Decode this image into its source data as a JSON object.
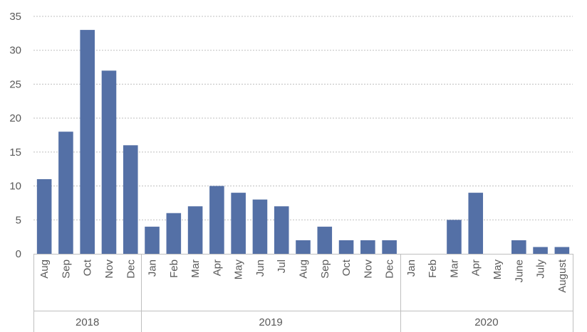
{
  "chart_data": {
    "type": "bar",
    "title": "",
    "xlabel": "",
    "ylabel": "",
    "ylim": [
      0,
      35
    ],
    "yticks": [
      0,
      5,
      10,
      15,
      20,
      25,
      30,
      35
    ],
    "grid": true,
    "bar_color": "#5470a6",
    "gridline_color": "#bfbfbf",
    "axis_color": "#bfbfbf",
    "text_color": "#595959",
    "categories": [
      "Aug",
      "Sep",
      "Oct",
      "Nov",
      "Dec",
      "Jan",
      "Feb",
      "Mar",
      "Apr",
      "May",
      "Jun",
      "Jul",
      "Aug",
      "Sep",
      "Oct",
      "Nov",
      "Dec",
      "Jan",
      "Feb",
      "Mar",
      "Apr",
      "May",
      "June",
      "July",
      "August"
    ],
    "values": [
      11,
      18,
      33,
      27,
      16,
      4,
      6,
      7,
      10,
      9,
      8,
      7,
      2,
      4,
      2,
      2,
      2,
      0,
      0,
      5,
      9,
      0,
      2,
      1,
      1
    ],
    "groups": [
      {
        "label": "2018",
        "start": 0,
        "count": 5
      },
      {
        "label": "2019",
        "start": 5,
        "count": 12
      },
      {
        "label": "2020",
        "start": 17,
        "count": 8
      }
    ]
  }
}
